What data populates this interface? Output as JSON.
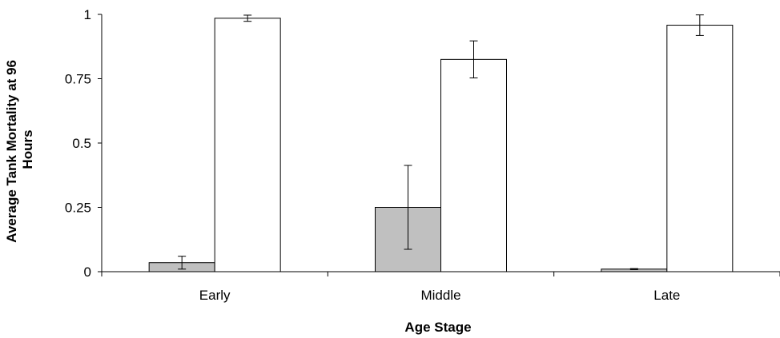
{
  "chart_data": {
    "type": "bar",
    "categories": [
      "Early",
      "Middle",
      "Late"
    ],
    "series": [
      {
        "color": "#c0c0c0",
        "values": [
          0.035,
          0.25,
          0.01
        ],
        "errors": [
          0.025,
          0.163,
          0.002
        ]
      },
      {
        "color": "#ffffff",
        "values": [
          0.985,
          0.825,
          0.958
        ],
        "errors": [
          0.012,
          0.072,
          0.04
        ]
      }
    ],
    "xlabel": "Age Stage",
    "ylabel_lines": [
      "Average Tank Mortality at 96",
      "Hours"
    ],
    "ylim": [
      0,
      1
    ],
    "yticks": [
      0,
      0.25,
      0.5,
      0.75,
      1
    ],
    "ytick_labels": [
      "0",
      "0.25",
      "0.5",
      "0.75",
      "1"
    ],
    "grid": false,
    "legend": "none"
  }
}
